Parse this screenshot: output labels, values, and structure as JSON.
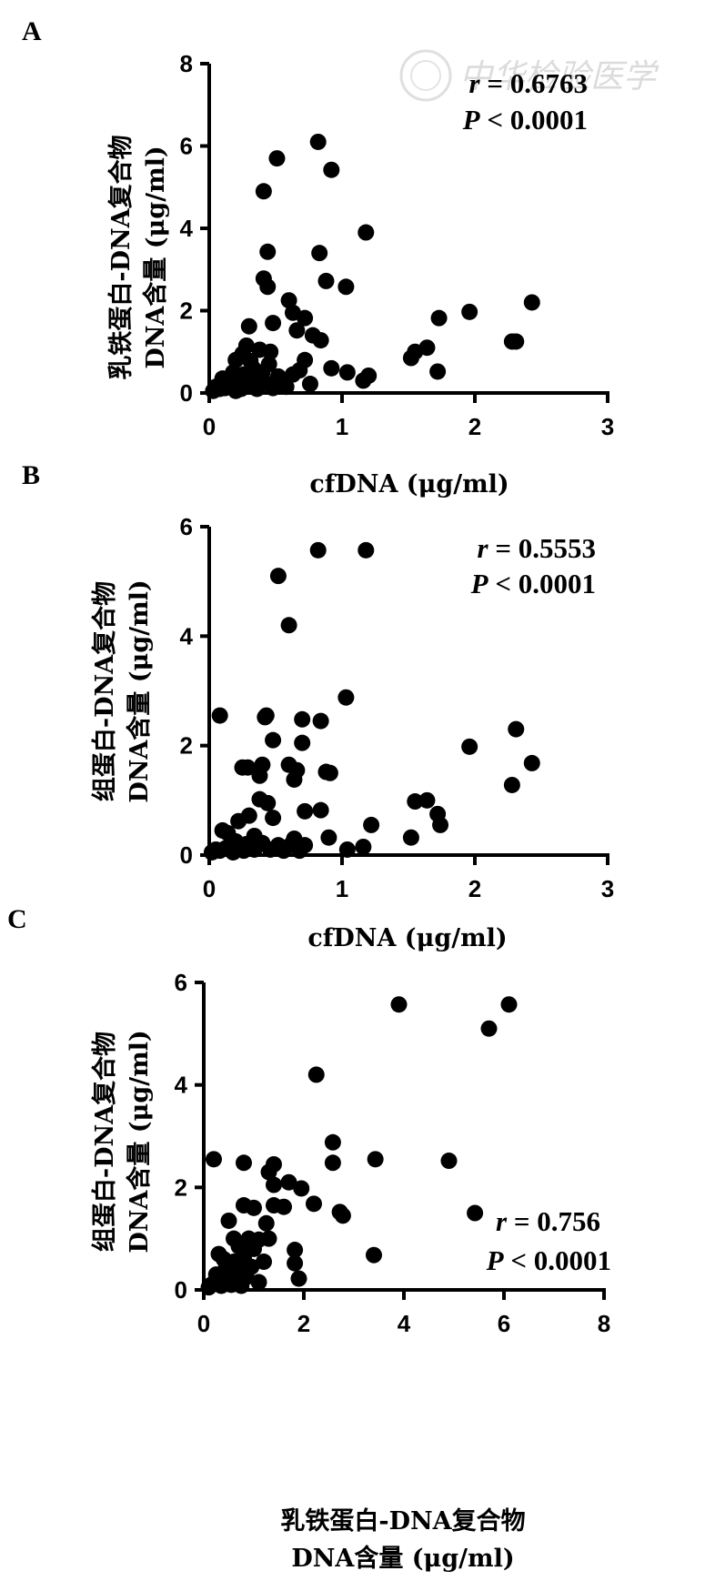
{
  "watermark": {
    "text": "中华检验医学"
  },
  "chart_data": [
    {
      "type": "scatter",
      "panel_label": "A",
      "xlabel": "cfDNA (μg/ml)",
      "ylabel_lines": [
        "乳铁蛋白-DNA复合物",
        "DNA含量 (μg/ml)"
      ],
      "xlim": [
        0,
        3
      ],
      "ylim": [
        0,
        8
      ],
      "x_ticks": [
        0,
        1,
        2,
        3
      ],
      "y_ticks": [
        0,
        2,
        4,
        6,
        8
      ],
      "stats": {
        "r_symbol": "r",
        "r_text": " = 0.6763",
        "p_symbol": "P",
        "p_text": " < 0.0001"
      },
      "points": [
        [
          0.82,
          6.1
        ],
        [
          0.51,
          5.7
        ],
        [
          0.92,
          5.42
        ],
        [
          0.41,
          4.9
        ],
        [
          1.18,
          3.9
        ],
        [
          0.44,
          3.43
        ],
        [
          0.83,
          3.4
        ],
        [
          0.41,
          2.78
        ],
        [
          0.88,
          2.72
        ],
        [
          1.03,
          2.58
        ],
        [
          0.44,
          2.58
        ],
        [
          0.6,
          2.25
        ],
        [
          0.63,
          1.95
        ],
        [
          0.72,
          1.82
        ],
        [
          1.73,
          1.82
        ],
        [
          1.96,
          1.97
        ],
        [
          2.43,
          2.2
        ],
        [
          0.3,
          1.62
        ],
        [
          0.48,
          1.7
        ],
        [
          0.66,
          1.52
        ],
        [
          0.78,
          1.4
        ],
        [
          0.84,
          1.28
        ],
        [
          0.28,
          1.15
        ],
        [
          0.38,
          1.05
        ],
        [
          0.46,
          1.0
        ],
        [
          0.25,
          0.95
        ],
        [
          1.64,
          1.1
        ],
        [
          1.55,
          1.0
        ],
        [
          1.52,
          0.85
        ],
        [
          2.28,
          1.25
        ],
        [
          2.31,
          1.25
        ],
        [
          0.2,
          0.8
        ],
        [
          0.31,
          0.78
        ],
        [
          0.45,
          0.7
        ],
        [
          0.72,
          0.8
        ],
        [
          0.33,
          0.6
        ],
        [
          0.92,
          0.6
        ],
        [
          1.04,
          0.5
        ],
        [
          1.72,
          0.52
        ],
        [
          1.2,
          0.42
        ],
        [
          1.16,
          0.3
        ],
        [
          0.18,
          0.5
        ],
        [
          0.26,
          0.45
        ],
        [
          0.4,
          0.5
        ],
        [
          0.52,
          0.4
        ],
        [
          0.63,
          0.45
        ],
        [
          0.68,
          0.55
        ],
        [
          0.22,
          0.35
        ],
        [
          0.3,
          0.3
        ],
        [
          0.1,
          0.35
        ],
        [
          0.14,
          0.25
        ],
        [
          0.35,
          0.2
        ],
        [
          0.42,
          0.25
        ],
        [
          0.5,
          0.2
        ],
        [
          0.76,
          0.22
        ],
        [
          0.05,
          0.15
        ],
        [
          0.08,
          0.1
        ],
        [
          0.12,
          0.12
        ],
        [
          0.17,
          0.15
        ],
        [
          0.24,
          0.1
        ],
        [
          0.28,
          0.18
        ],
        [
          0.36,
          0.1
        ],
        [
          0.48,
          0.12
        ],
        [
          0.58,
          0.15
        ],
        [
          0.03,
          0.05
        ],
        [
          0.2,
          0.05
        ]
      ]
    },
    {
      "type": "scatter",
      "panel_label": "B",
      "xlabel": "cfDNA (μg/ml)",
      "ylabel_lines": [
        "组蛋白-DNA复合物",
        "DNA含量 (μg/ml)"
      ],
      "xlim": [
        0,
        3
      ],
      "ylim": [
        0,
        6
      ],
      "x_ticks": [
        0,
        1,
        2,
        3
      ],
      "y_ticks": [
        0,
        2,
        4,
        6
      ],
      "stats": {
        "r_symbol": "r",
        "r_text": " = 0.5553",
        "p_symbol": "P",
        "p_text": " < 0.0001"
      },
      "points": [
        [
          0.82,
          5.57
        ],
        [
          1.18,
          5.57
        ],
        [
          0.52,
          5.1
        ],
        [
          0.6,
          4.2
        ],
        [
          1.03,
          2.88
        ],
        [
          0.42,
          2.52
        ],
        [
          0.43,
          2.55
        ],
        [
          0.7,
          2.48
        ],
        [
          0.84,
          2.45
        ],
        [
          0.08,
          2.55
        ],
        [
          0.48,
          2.1
        ],
        [
          0.7,
          2.05
        ],
        [
          2.31,
          2.3
        ],
        [
          1.96,
          1.98
        ],
        [
          2.43,
          1.68
        ],
        [
          0.4,
          1.65
        ],
        [
          0.25,
          1.6
        ],
        [
          0.29,
          1.6
        ],
        [
          0.6,
          1.65
        ],
        [
          0.88,
          1.52
        ],
        [
          0.91,
          1.5
        ],
        [
          0.38,
          1.45
        ],
        [
          0.64,
          1.38
        ],
        [
          0.66,
          1.55
        ],
        [
          2.28,
          1.28
        ],
        [
          1.55,
          0.98
        ],
        [
          1.64,
          1.0
        ],
        [
          0.38,
          1.02
        ],
        [
          0.44,
          0.95
        ],
        [
          0.72,
          0.8
        ],
        [
          0.84,
          0.82
        ],
        [
          1.72,
          0.75
        ],
        [
          0.48,
          0.68
        ],
        [
          0.3,
          0.72
        ],
        [
          1.74,
          0.55
        ],
        [
          1.22,
          0.55
        ],
        [
          0.22,
          0.62
        ],
        [
          0.1,
          0.45
        ],
        [
          0.14,
          0.4
        ],
        [
          0.9,
          0.32
        ],
        [
          1.52,
          0.32
        ],
        [
          0.64,
          0.3
        ],
        [
          0.34,
          0.35
        ],
        [
          0.2,
          0.25
        ],
        [
          0.28,
          0.2
        ],
        [
          0.4,
          0.22
        ],
        [
          0.52,
          0.18
        ],
        [
          0.62,
          0.2
        ],
        [
          0.72,
          0.18
        ],
        [
          1.16,
          0.15
        ],
        [
          1.04,
          0.1
        ],
        [
          0.05,
          0.1
        ],
        [
          0.08,
          0.08
        ],
        [
          0.12,
          0.12
        ],
        [
          0.16,
          0.1
        ],
        [
          0.26,
          0.08
        ],
        [
          0.34,
          0.1
        ],
        [
          0.46,
          0.1
        ],
        [
          0.56,
          0.08
        ],
        [
          0.68,
          0.08
        ],
        [
          0.02,
          0.05
        ],
        [
          0.18,
          0.05
        ]
      ]
    },
    {
      "type": "scatter",
      "panel_label": "C",
      "xlabel_lines": [
        "乳铁蛋白-DNA复合物",
        "DNA含量 (μg/ml)"
      ],
      "ylabel_lines": [
        "组蛋白-DNA复合物",
        "DNA含量 (μg/ml)"
      ],
      "xlim": [
        0,
        8
      ],
      "ylim": [
        0,
        6
      ],
      "x_ticks": [
        0,
        2,
        4,
        6,
        8
      ],
      "y_ticks": [
        0,
        2,
        4,
        6
      ],
      "stats": {
        "r_symbol": "r",
        "r_text": " = 0.756",
        "p_symbol": "P",
        "p_text": " < 0.0001"
      },
      "points": [
        [
          3.9,
          5.57
        ],
        [
          6.1,
          5.57
        ],
        [
          5.7,
          5.1
        ],
        [
          2.25,
          4.2
        ],
        [
          2.58,
          2.88
        ],
        [
          0.2,
          2.55
        ],
        [
          3.43,
          2.55
        ],
        [
          4.9,
          2.52
        ],
        [
          0.8,
          2.48
        ],
        [
          2.58,
          2.48
        ],
        [
          1.4,
          2.45
        ],
        [
          1.3,
          2.3
        ],
        [
          1.4,
          2.05
        ],
        [
          1.7,
          2.1
        ],
        [
          1.95,
          1.98
        ],
        [
          2.2,
          1.68
        ],
        [
          2.72,
          1.52
        ],
        [
          2.78,
          1.45
        ],
        [
          0.8,
          1.65
        ],
        [
          1.0,
          1.6
        ],
        [
          1.4,
          1.65
        ],
        [
          1.6,
          1.62
        ],
        [
          0.5,
          1.35
        ],
        [
          1.25,
          1.3
        ],
        [
          5.42,
          1.5
        ],
        [
          0.6,
          1.0
        ],
        [
          0.9,
          1.0
        ],
        [
          1.1,
          0.98
        ],
        [
          1.3,
          1.0
        ],
        [
          0.7,
          0.85
        ],
        [
          1.0,
          0.8
        ],
        [
          1.82,
          0.78
        ],
        [
          3.4,
          0.68
        ],
        [
          0.3,
          0.7
        ],
        [
          0.4,
          0.6
        ],
        [
          0.6,
          0.55
        ],
        [
          0.8,
          0.62
        ],
        [
          1.2,
          0.55
        ],
        [
          1.82,
          0.52
        ],
        [
          0.45,
          0.45
        ],
        [
          0.7,
          0.4
        ],
        [
          0.95,
          0.45
        ],
        [
          0.25,
          0.3
        ],
        [
          0.5,
          0.32
        ],
        [
          0.85,
          0.25
        ],
        [
          1.9,
          0.22
        ],
        [
          0.3,
          0.2
        ],
        [
          0.6,
          0.18
        ],
        [
          1.1,
          0.15
        ],
        [
          0.15,
          0.1
        ],
        [
          0.35,
          0.08
        ],
        [
          0.55,
          0.1
        ],
        [
          0.75,
          0.08
        ],
        [
          0.1,
          0.05
        ],
        [
          0.2,
          0.12
        ]
      ]
    }
  ]
}
